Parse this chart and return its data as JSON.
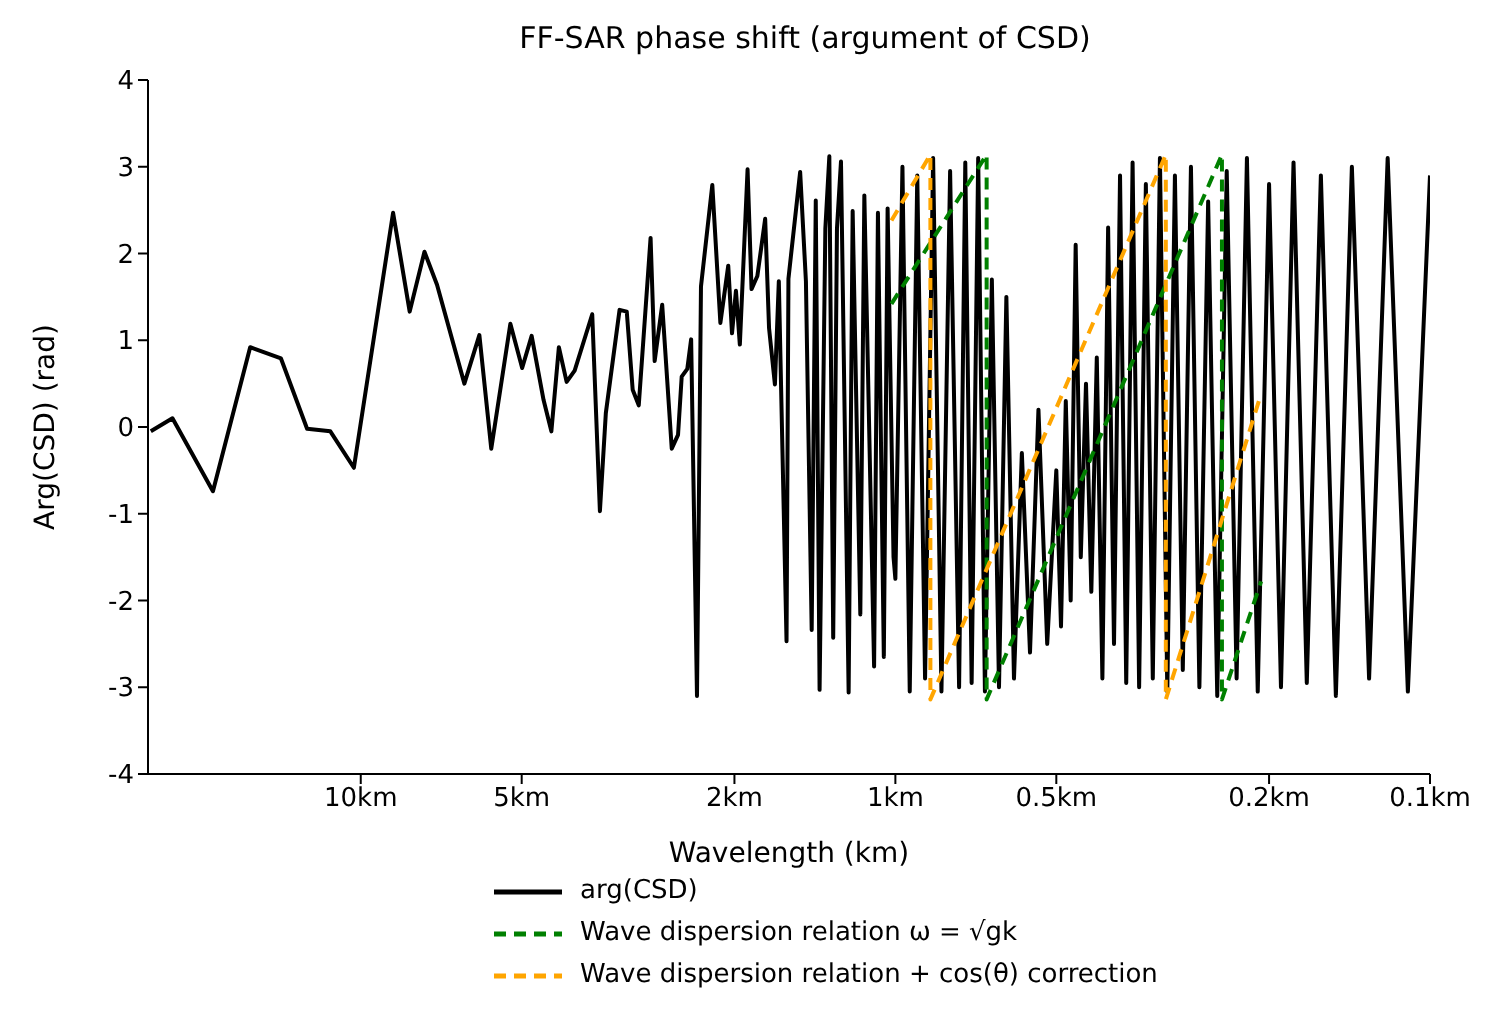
{
  "chart_data": {
    "type": "line",
    "title": "FF-SAR phase shift (argument of CSD)",
    "xlabel": "Wavelength (km)",
    "ylabel": "Arg(CSD) (rad)",
    "log": "x",
    "xlim": [
      25,
      0.1
    ],
    "xticks": [
      {
        "value": 10,
        "label": "10km"
      },
      {
        "value": 5,
        "label": "5km"
      },
      {
        "value": 2,
        "label": "2km"
      },
      {
        "value": 1,
        "label": "1km"
      },
      {
        "value": 0.5,
        "label": "0.5km"
      },
      {
        "value": 0.2,
        "label": "0.2km"
      },
      {
        "value": 0.1,
        "label": "0.1km"
      }
    ],
    "ylim": [
      -4,
      4
    ],
    "yticks": [
      -4,
      -3,
      -2,
      -1,
      0,
      1,
      2,
      3,
      4
    ],
    "grid": false,
    "legend": "bottom",
    "marker": "none",
    "series": [
      {
        "name": "arg(CSD)",
        "color": "#000000",
        "line_style": "solid",
        "x": [
          24.7,
          22.5,
          18.9,
          16.1,
          14.1,
          12.6,
          11.4,
          10.3,
          8.7,
          8.1,
          7.6,
          7.2,
          6.4,
          6.0,
          5.7,
          5.25,
          4.99,
          4.79,
          4.55,
          4.4,
          4.26,
          4.12,
          3.98,
          3.69,
          3.57,
          3.48,
          3.28,
          3.18,
          3.1,
          3.02,
          2.87,
          2.82,
          2.73,
          2.62,
          2.55,
          2.51,
          2.45,
          2.41,
          2.35,
          2.31,
          2.2,
          2.125,
          2.054,
          2.021,
          1.987,
          1.954,
          1.89,
          1.858,
          1.812,
          1.752,
          1.723,
          1.68,
          1.652,
          1.598,
          1.585,
          1.507,
          1.47,
          1.434,
          1.409,
          1.386,
          1.352,
          1.329,
          1.307,
          1.286,
          1.264,
          1.223,
          1.202,
          1.163,
          1.143,
          1.096,
          1.078,
          1.051,
          1.034,
          1.008,
          1.0,
          0.97,
          0.94,
          0.91,
          0.88,
          0.85,
          0.82,
          0.79,
          0.76,
          0.74,
          0.72,
          0.7,
          0.68,
          0.66,
          0.64,
          0.62,
          0.6,
          0.58,
          0.56,
          0.54,
          0.52,
          0.5,
          0.49,
          0.48,
          0.47,
          0.46,
          0.45,
          0.44,
          0.43,
          0.42,
          0.41,
          0.4,
          0.39,
          0.38,
          0.37,
          0.36,
          0.35,
          0.34,
          0.33,
          0.32,
          0.31,
          0.3,
          0.29,
          0.28,
          0.27,
          0.26,
          0.25,
          0.24,
          0.23,
          0.22,
          0.21,
          0.2,
          0.19,
          0.18,
          0.17,
          0.16,
          0.15,
          0.14,
          0.13,
          0.12,
          0.11,
          0.1
        ],
        "values": [
          -0.05,
          0.1,
          -0.74,
          0.92,
          0.79,
          -0.02,
          -0.05,
          -0.47,
          2.47,
          1.33,
          2.02,
          1.64,
          0.5,
          1.06,
          -0.25,
          1.19,
          0.68,
          1.05,
          0.31,
          -0.05,
          0.92,
          0.52,
          0.65,
          1.3,
          -0.97,
          0.16,
          1.35,
          1.33,
          0.43,
          0.25,
          2.18,
          0.76,
          1.41,
          -0.25,
          -0.09,
          0.58,
          0.67,
          1.01,
          -3.1,
          1.62,
          2.79,
          1.2,
          1.86,
          1.08,
          1.57,
          0.95,
          2.97,
          1.59,
          1.74,
          2.4,
          1.14,
          0.49,
          1.68,
          -2.47,
          1.71,
          2.94,
          1.68,
          -2.34,
          2.61,
          -3.03,
          2.29,
          3.12,
          -2.43,
          2.29,
          3.06,
          -3.06,
          2.49,
          -2.16,
          2.67,
          -2.76,
          2.47,
          -2.65,
          2.52,
          -1.5,
          -1.75,
          3.0,
          -3.05,
          2.9,
          -2.9,
          3.1,
          -3.05,
          2.95,
          -3.0,
          3.05,
          -2.95,
          3.1,
          -3.05,
          1.7,
          -3.0,
          1.5,
          -2.9,
          -0.3,
          -2.6,
          0.2,
          -2.5,
          -0.5,
          -2.3,
          0.3,
          -2.0,
          2.1,
          -1.5,
          0.5,
          -1.9,
          0.8,
          -2.9,
          2.3,
          -2.5,
          2.9,
          -2.95,
          3.05,
          -3.0,
          2.8,
          -2.9,
          3.1,
          -3.05,
          2.9,
          -2.8,
          3.0,
          -3.0,
          2.6,
          -3.1,
          2.95,
          -2.9,
          3.1,
          -3.05,
          2.8,
          -3.0,
          3.05,
          -2.95,
          2.9,
          -3.1,
          3.0,
          -2.9,
          3.1,
          -3.05,
          2.9
        ]
      },
      {
        "name": "Wave dispersion relation ω = √gk",
        "color": "#008000",
        "line_style": "dashed",
        "x": [
          1.017,
          0.675,
          0.675,
          0.245,
          0.245,
          0.207
        ],
        "values": [
          1.42,
          3.14,
          -3.14,
          3.14,
          -3.14,
          -1.78
        ]
      },
      {
        "name": "Wave dispersion relation + cos(θ) correction",
        "color": "#ffa500",
        "line_style": "dashed",
        "x": [
          1.017,
          0.86,
          0.86,
          0.312,
          0.312,
          0.207
        ],
        "values": [
          2.38,
          3.14,
          -3.14,
          3.14,
          -3.14,
          0.38
        ]
      }
    ]
  }
}
